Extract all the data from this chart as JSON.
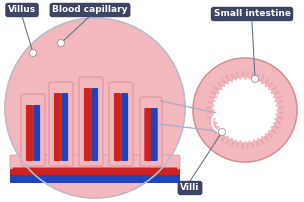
{
  "bg_color": "#ffffff",
  "label_bg_color": "#3d4464",
  "label_text_color": "#ffffff",
  "villus_fill": "#f2b8be",
  "villus_outline": "#e09098",
  "blood_red": "#cc2222",
  "blood_blue": "#2244bb",
  "intestine_bg_outer": "#f2b8be",
  "intestine_bg_inner": "#ffffff",
  "intestine_wall_color": "#f2b8be",
  "zoom_line_color": "#aaaacc",
  "connector_line_color": "#667788",
  "dot_color": "#ffffff",
  "dot_edge": "#888888",
  "labels": {
    "villus": "Villus",
    "blood_capillary": "Blood capillary",
    "small_intestine": "Small intestine",
    "villi": "Villi"
  },
  "fig_w": 3.04,
  "fig_h": 2.02,
  "dpi": 100
}
